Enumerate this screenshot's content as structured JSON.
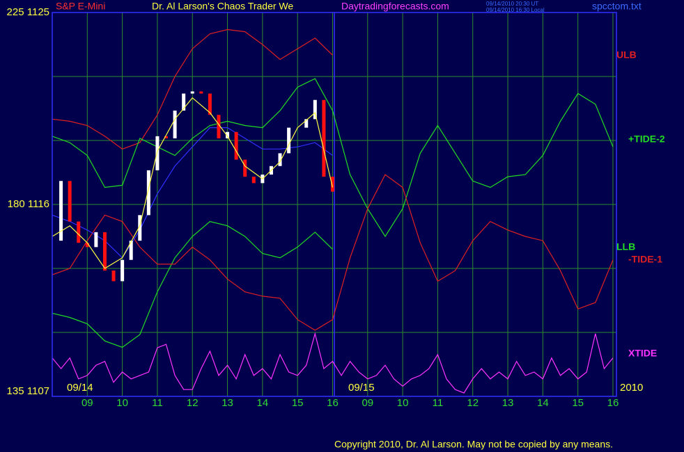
{
  "chart_data": {
    "type": "line",
    "title": "S&P E-Mini",
    "subtitle": "Dr. Al Larson's Chaos Trader We",
    "site": "Daytradingforecasts.com",
    "stamps": [
      "09/14/2010 20:30 UT",
      "09/14/2010 16:30 Local"
    ],
    "file": "spcctom.txt",
    "copyright": "Copyright 2010, Dr. Al Larson. May not be copied by any means.",
    "date_labels": [
      "09/14",
      "09/15",
      "2010"
    ],
    "xlim": [
      0,
      16.1
    ],
    "xticks": [
      {
        "value": 1,
        "label": "09"
      },
      {
        "value": 2,
        "label": "10"
      },
      {
        "value": 3,
        "label": "11"
      },
      {
        "value": 4,
        "label": "12"
      },
      {
        "value": 5,
        "label": "13"
      },
      {
        "value": 6,
        "label": "14"
      },
      {
        "value": 7,
        "label": "15"
      },
      {
        "value": 8,
        "label": "16"
      },
      {
        "value": 9,
        "label": "09"
      },
      {
        "value": 10,
        "label": "10"
      },
      {
        "value": 11,
        "label": "11"
      },
      {
        "value": 12,
        "label": "12"
      },
      {
        "value": 13,
        "label": "13"
      },
      {
        "value": 14,
        "label": "14"
      },
      {
        "value": 15,
        "label": "15"
      },
      {
        "value": 16,
        "label": "16"
      }
    ],
    "session_break": 8.05,
    "ylim": [
      1107,
      1125
    ],
    "yticks": [
      {
        "value": 1107,
        "label": "135 1107"
      },
      {
        "value": 1116,
        "label": "180 1116"
      },
      {
        "value": 1125,
        "label": "225 1125"
      }
    ],
    "ygrid": [
      1110,
      1113,
      1119,
      1122
    ],
    "y2lim": [
      135,
      225
    ],
    "grid": true,
    "series": [
      {
        "name": "ULB",
        "color": "#e02020",
        "x": [
          0,
          0.5,
          1,
          1.5,
          2,
          2.5,
          3,
          3.5,
          4,
          4.5,
          5,
          5.5,
          6,
          6.5,
          7,
          7.5,
          8
        ],
        "values": [
          1120.0,
          1119.9,
          1119.7,
          1119.2,
          1118.6,
          1118.9,
          1120.2,
          1122.0,
          1123.3,
          1124.0,
          1124.2,
          1124.1,
          1123.5,
          1122.8,
          1123.3,
          1123.8,
          1123.0
        ]
      },
      {
        "name": "+TIDE-2",
        "color": "#22dd22",
        "x": [
          0,
          0.5,
          1,
          1.5,
          2,
          2.5,
          3,
          3.5,
          4,
          4.5,
          5,
          5.5,
          6,
          6.5,
          7,
          7.5,
          8,
          8.5,
          9,
          9.5,
          10,
          10.5,
          11,
          11.5,
          12,
          12.5,
          13,
          13.5,
          14,
          14.5,
          15,
          15.5,
          16
        ],
        "values": [
          1119.2,
          1118.9,
          1118.3,
          1116.8,
          1116.9,
          1119.1,
          1118.7,
          1118.3,
          1119.1,
          1119.7,
          1119.9,
          1119.7,
          1119.6,
          1120.4,
          1121.5,
          1121.9,
          1120.4,
          1117.4,
          1115.8,
          1114.5,
          1115.8,
          1118.4,
          1119.7,
          1118.4,
          1117.1,
          1116.8,
          1117.3,
          1117.4,
          1118.3,
          1119.9,
          1121.2,
          1120.7,
          1118.7
        ]
      },
      {
        "name": "LLB",
        "color": "#22dd22",
        "x": [
          0,
          0.5,
          1,
          1.5,
          2,
          2.5,
          3,
          3.5,
          4,
          4.5,
          5,
          5.5,
          6,
          6.5,
          7,
          7.5,
          8
        ],
        "values": [
          1110.9,
          1110.7,
          1110.4,
          1109.6,
          1109.3,
          1109.9,
          1111.9,
          1113.5,
          1114.5,
          1115.2,
          1115.0,
          1114.5,
          1113.7,
          1113.5,
          1114.0,
          1114.7,
          1113.9
        ]
      },
      {
        "name": "-TIDE-1",
        "color": "#e02020",
        "x": [
          0,
          0.5,
          1,
          1.5,
          2,
          2.5,
          3,
          3.5,
          4,
          4.5,
          5,
          5.5,
          6,
          6.5,
          7,
          7.5,
          8,
          8.5,
          9,
          9.5,
          10,
          10.5,
          11,
          11.5,
          12,
          12.5,
          13,
          13.5,
          14,
          14.5,
          15,
          15.5,
          16
        ],
        "values": [
          1112.7,
          1113.0,
          1114.3,
          1115.5,
          1115.2,
          1114.0,
          1113.2,
          1113.2,
          1114.0,
          1113.4,
          1112.5,
          1111.9,
          1111.7,
          1111.6,
          1110.6,
          1110.1,
          1110.6,
          1113.5,
          1115.8,
          1117.4,
          1116.8,
          1114.2,
          1112.4,
          1112.9,
          1114.3,
          1115.2,
          1114.8,
          1114.5,
          1114.3,
          1112.9,
          1111.1,
          1111.4,
          1113.4
        ]
      },
      {
        "color": "#3030ff",
        "x": [
          0,
          0.5,
          1,
          1.5,
          2,
          2.5,
          3,
          3.5,
          4,
          4.5,
          5,
          5.5,
          6,
          6.5,
          7,
          7.5,
          8
        ],
        "values": [
          1115.5,
          1115.2,
          1114.8,
          1114.3,
          1113.5,
          1114.8,
          1116.5,
          1117.8,
          1118.7,
          1119.6,
          1119.6,
          1119.1,
          1118.6,
          1118.6,
          1118.7,
          1118.9,
          1118.3
        ]
      },
      {
        "color": "#ffffff",
        "style": "bars",
        "up_color": "#ffffff",
        "down_color": "#ff1010",
        "x": [
          0,
          0.25,
          0.5,
          0.75,
          1,
          1.25,
          1.5,
          1.75,
          2,
          2.25,
          2.5,
          2.75,
          3,
          3.25,
          3.5,
          3.75,
          4,
          4.25,
          4.5,
          4.75,
          5,
          5.25,
          5.5,
          5.75,
          6,
          6.25,
          6.5,
          6.75,
          7,
          7.25,
          7.5,
          7.75,
          8
        ],
        "values": [
          1114.3,
          1117.1,
          1115.2,
          1114.2,
          1114.0,
          1114.7,
          1112.9,
          1112.4,
          1113.4,
          1114.3,
          1115.5,
          1117.6,
          1119.2,
          1119.1,
          1120.4,
          1121.2,
          1121.3,
          1121.2,
          1120.2,
          1119.1,
          1119.4,
          1118.1,
          1117.3,
          1117.0,
          1117.4,
          1117.8,
          1118.4,
          1119.6,
          1119.6,
          1120.0,
          1120.9,
          1117.3,
          1116.6
        ]
      },
      {
        "color": "#ffff40",
        "x": [
          0,
          0.5,
          1,
          1.5,
          2,
          2.5,
          3,
          3.5,
          4,
          4.5,
          5,
          5.5,
          6,
          6.5,
          7,
          7.5,
          8
        ],
        "values": [
          1114.5,
          1115.0,
          1114.2,
          1113.0,
          1113.5,
          1115.0,
          1118.5,
          1120.0,
          1121.0,
          1120.3,
          1119.2,
          1117.8,
          1117.2,
          1118.0,
          1119.6,
          1120.3,
          1116.8
        ]
      },
      {
        "name": "XTIDE",
        "color": "#ff33ff",
        "axis": "y2",
        "x": [
          0,
          0.25,
          0.5,
          0.75,
          1,
          1.25,
          1.5,
          1.75,
          2,
          2.25,
          2.5,
          2.75,
          3,
          3.25,
          3.5,
          3.75,
          4,
          4.25,
          4.5,
          4.75,
          5,
          5.25,
          5.5,
          5.75,
          6,
          6.25,
          6.5,
          6.75,
          7,
          7.25,
          7.5,
          7.75,
          8,
          8.25,
          8.5,
          8.75,
          9,
          9.25,
          9.5,
          9.75,
          10,
          10.25,
          10.5,
          10.75,
          11,
          11.25,
          11.5,
          11.75,
          12,
          12.25,
          12.5,
          12.75,
          13,
          13.25,
          13.5,
          13.75,
          14,
          14.25,
          14.5,
          14.75,
          15,
          15.25,
          15.5,
          15.75,
          16
        ],
        "values": [
          144.0,
          141.5,
          144.0,
          139.1,
          139.9,
          142.3,
          143.2,
          138.3,
          140.7,
          139.1,
          139.9,
          140.7,
          146.4,
          147.2,
          139.9,
          136.6,
          136.6,
          141.5,
          145.6,
          139.9,
          142.3,
          139.1,
          144.8,
          139.9,
          141.5,
          139.1,
          144.8,
          140.7,
          139.9,
          142.3,
          149.7,
          141.5,
          143.2,
          139.9,
          143.2,
          140.7,
          139.1,
          139.9,
          142.3,
          139.1,
          137.4,
          139.1,
          139.9,
          141.5,
          144.8,
          139.1,
          136.6,
          135.8,
          139.1,
          141.5,
          139.1,
          140.7,
          139.1,
          143.2,
          139.9,
          140.7,
          139.1,
          144.0,
          139.9,
          141.5,
          139.1,
          140.7,
          149.7,
          141.5,
          144.0
        ]
      }
    ]
  }
}
